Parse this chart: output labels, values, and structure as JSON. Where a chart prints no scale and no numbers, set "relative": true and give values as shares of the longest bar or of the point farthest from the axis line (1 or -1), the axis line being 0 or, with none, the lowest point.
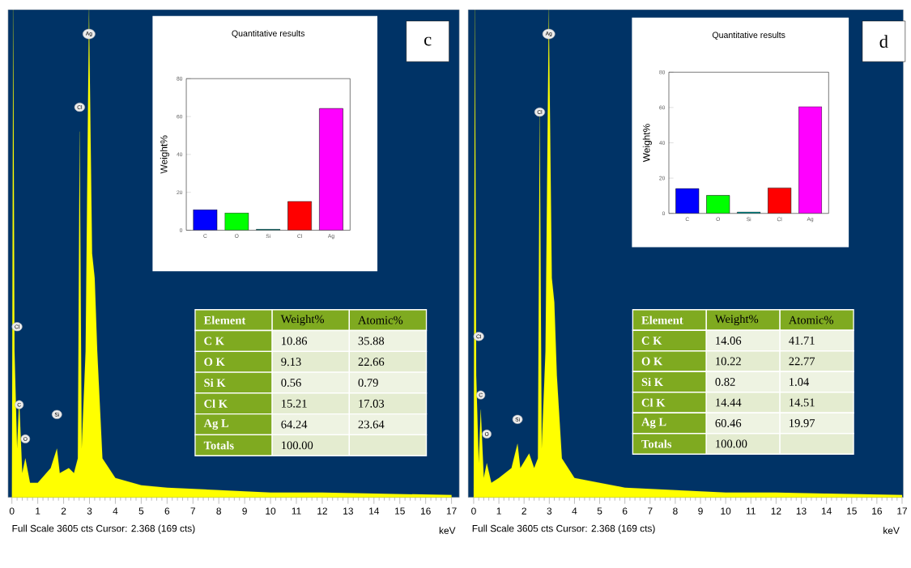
{
  "chart_data": [
    {
      "type": "area",
      "title": "c",
      "xlabel": "keV",
      "relative": true,
      "color": "#ffff00",
      "xlim": [
        -0.15,
        17.3
      ],
      "xticks": [
        0,
        1,
        2,
        3,
        4,
        5,
        6,
        7,
        8,
        9,
        10,
        11,
        12,
        13,
        14,
        15,
        16,
        17
      ],
      "x": [
        0,
        0.05,
        0.1,
        0.2,
        0.28,
        0.4,
        0.52,
        0.7,
        1.0,
        1.5,
        1.74,
        1.85,
        2.2,
        2.4,
        2.55,
        2.62,
        2.7,
        2.85,
        2.98,
        3.1,
        3.2,
        3.3,
        3.5,
        4,
        5,
        6,
        8,
        10,
        12,
        14,
        17
      ],
      "values": [
        0,
        1.0,
        0.3,
        0.1,
        0.2,
        0.05,
        0.08,
        0.03,
        0.03,
        0.06,
        0.1,
        0.05,
        0.06,
        0.05,
        0.08,
        0.75,
        0.1,
        0.3,
        1.0,
        0.5,
        0.45,
        0.3,
        0.08,
        0.04,
        0.025,
        0.02,
        0.015,
        0.01,
        0.01,
        0.008,
        0.005
      ],
      "annotations": [
        {
          "text": "Cl",
          "x": 0.2,
          "y": 0.35
        },
        {
          "text": "C",
          "x": 0.28,
          "y": 0.19
        },
        {
          "text": "O",
          "x": 0.52,
          "y": 0.12
        },
        {
          "text": "Si",
          "x": 1.74,
          "y": 0.17
        },
        {
          "text": "Cl",
          "x": 2.62,
          "y": 0.8
        },
        {
          "text": "Ag",
          "x": 2.98,
          "y": 0.95
        },
        "Full Scale 3605 cts Cursor: 2.368 (169 cts)"
      ]
    },
    {
      "type": "bar",
      "title": "Quantitative results",
      "ylabel": "Weight%",
      "categories": [
        "C",
        "O",
        "Si",
        "Cl",
        "Ag"
      ],
      "values": [
        10.86,
        9.13,
        0.56,
        15.21,
        64.24
      ],
      "colors": [
        "#0000ff",
        "#00ff00",
        "#009999",
        "#ff0000",
        "#ff00ff"
      ],
      "ylim": [
        0,
        80
      ],
      "yticks": [
        0,
        20,
        40,
        60,
        80
      ]
    },
    {
      "type": "other",
      "annotations": [
        "Element",
        "Weight%",
        "Atomic%",
        "C K",
        "10.86",
        "35.88",
        "O K",
        "9.13",
        "22.66",
        "Si K",
        "0.56",
        "0.79",
        "Cl K",
        "15.21",
        "17.03",
        "Ag L",
        "64.24",
        "23.64",
        "Totals",
        "100.00"
      ]
    },
    {
      "type": "area",
      "title": "d",
      "xlabel": "keV",
      "relative": true,
      "color": "#ffff00",
      "xlim": [
        -0.22,
        17.05
      ],
      "xticks": [
        0,
        1,
        2,
        3,
        4,
        5,
        6,
        7,
        8,
        9,
        10,
        11,
        12,
        13,
        14,
        15,
        16,
        17
      ],
      "x": [
        0,
        0.05,
        0.1,
        0.2,
        0.28,
        0.4,
        0.52,
        0.7,
        1.0,
        1.5,
        1.74,
        1.85,
        2.2,
        2.4,
        2.55,
        2.62,
        2.7,
        2.85,
        2.98,
        3.1,
        3.2,
        3.3,
        3.5,
        4,
        5,
        6,
        8,
        10,
        12,
        14,
        17
      ],
      "values": [
        0,
        1.0,
        0.25,
        0.07,
        0.18,
        0.04,
        0.07,
        0.03,
        0.04,
        0.06,
        0.11,
        0.06,
        0.09,
        0.06,
        0.08,
        0.79,
        0.1,
        0.3,
        1.0,
        0.45,
        0.4,
        0.25,
        0.08,
        0.04,
        0.03,
        0.02,
        0.015,
        0.01,
        0.01,
        0.008,
        0.005
      ],
      "annotations": [
        {
          "text": "Cl",
          "x": 0.2,
          "y": 0.33
        },
        {
          "text": "C",
          "x": 0.28,
          "y": 0.21
        },
        {
          "text": "O",
          "x": 0.52,
          "y": 0.13
        },
        {
          "text": "Si",
          "x": 1.74,
          "y": 0.16
        },
        {
          "text": "Cl",
          "x": 2.62,
          "y": 0.79
        },
        {
          "text": "Ag",
          "x": 2.98,
          "y": 0.95
        },
        "Full Scale 3605 cts Cursor: 2.368 (169 cts)"
      ]
    },
    {
      "type": "bar",
      "title": "Quantitative results",
      "ylabel": "Weight%",
      "categories": [
        "C",
        "O",
        "Si",
        "Cl",
        "Ag"
      ],
      "values": [
        14.06,
        10.22,
        0.82,
        14.44,
        60.46
      ],
      "colors": [
        "#0000ff",
        "#00ff00",
        "#009999",
        "#ff0000",
        "#ff00ff"
      ],
      "ylim": [
        0,
        80
      ],
      "yticks": [
        0,
        20,
        40,
        60,
        80
      ]
    },
    {
      "type": "other",
      "annotations": [
        "Element",
        "Weight%",
        "Atomic%",
        "C K",
        "14.06",
        "41.71",
        "O K",
        "10.22",
        "22.77",
        "Si K",
        "0.82",
        "1.04",
        "Cl K",
        "14.44",
        "14.51",
        "Ag L",
        "60.46",
        "19.97",
        "Totals",
        "100.00"
      ]
    }
  ]
}
